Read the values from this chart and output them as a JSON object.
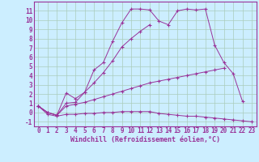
{
  "xlabel": "Windchill (Refroidissement éolien,°C)",
  "background_color": "#cceeff",
  "grid_color": "#aaccbb",
  "line_color": "#993399",
  "xlim": [
    -0.5,
    23.5
  ],
  "ylim": [
    -1.5,
    12
  ],
  "yticks": [
    -1,
    0,
    1,
    2,
    3,
    4,
    5,
    6,
    7,
    8,
    9,
    10,
    11
  ],
  "xticks": [
    0,
    1,
    2,
    3,
    4,
    5,
    6,
    7,
    8,
    9,
    10,
    11,
    12,
    13,
    14,
    15,
    16,
    17,
    18,
    19,
    20,
    21,
    22,
    23
  ],
  "series": [
    [
      0.7,
      0.0,
      -0.3,
      1.0,
      1.1,
      2.2,
      4.6,
      5.4,
      7.7,
      9.7,
      11.2,
      11.2,
      11.1,
      9.9,
      9.5,
      11.0,
      11.2,
      11.1,
      11.2,
      7.3,
      5.4,
      4.2,
      1.2,
      null
    ],
    [
      0.7,
      0.0,
      -0.3,
      2.1,
      1.5,
      2.2,
      3.2,
      4.3,
      5.6,
      7.1,
      8.0,
      8.8,
      9.5,
      null,
      null,
      null,
      null,
      null,
      null,
      null,
      null,
      null,
      null,
      null
    ],
    [
      0.7,
      0.0,
      -0.3,
      0.7,
      0.9,
      1.1,
      1.4,
      1.7,
      2.0,
      2.3,
      2.6,
      2.9,
      3.2,
      3.4,
      3.6,
      3.8,
      4.0,
      4.2,
      4.4,
      4.6,
      4.8,
      null,
      null,
      null
    ],
    [
      0.7,
      -0.2,
      -0.4,
      -0.2,
      -0.2,
      -0.1,
      -0.1,
      0.0,
      0.0,
      0.1,
      0.1,
      0.1,
      0.1,
      -0.1,
      -0.2,
      -0.3,
      -0.4,
      -0.4,
      -0.5,
      -0.6,
      -0.7,
      -0.8,
      -0.9,
      -1.0
    ]
  ],
  "xlabel_fontsize": 6,
  "tick_fontsize": 5.5
}
